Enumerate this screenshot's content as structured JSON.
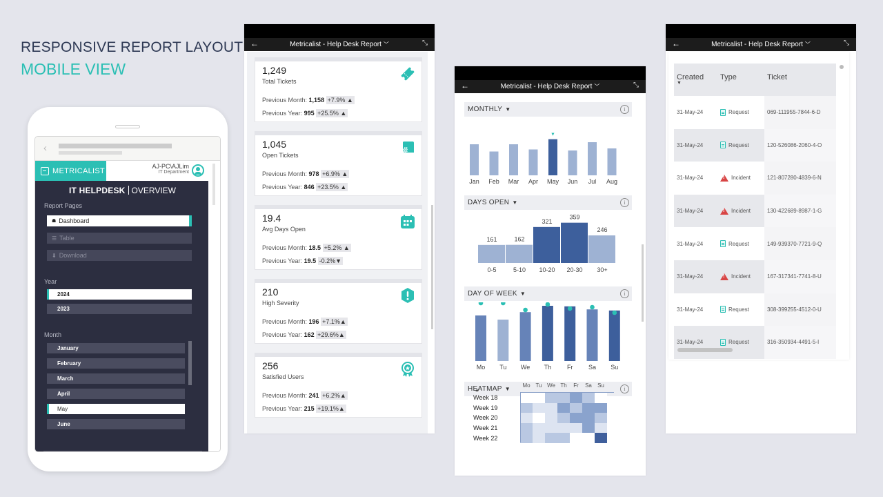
{
  "header": {
    "line1": "RESPONSIVE REPORT LAYOUT",
    "line2": "MOBILE VIEW"
  },
  "phone": {
    "logo": "METRICALIST",
    "user_name": "AJ-PC\\AJLim",
    "user_dept": "IT Department",
    "title_main": "IT HELPDESK",
    "title_sub": "OVERVIEW",
    "report_pages_label": "Report Pages",
    "pages": [
      {
        "label": "Dashboard",
        "icon": "home-icon"
      },
      {
        "label": "Table",
        "icon": "list-icon"
      },
      {
        "label": "Download",
        "icon": "download-icon"
      }
    ],
    "year_label": "Year",
    "years": [
      "2024",
      "2023"
    ],
    "selected_year": "2024",
    "month_label": "Month",
    "months": [
      "January",
      "February",
      "March",
      "April",
      "May",
      "June"
    ],
    "selected_month": "May"
  },
  "panel_title": "Metricalist - Help Desk Report",
  "kpis": [
    {
      "value": "1,249",
      "label": "Total Tickets",
      "prev_month_label": "Previous Month:",
      "prev_month": "1,158",
      "prev_month_change": "+7.9% ▲",
      "prev_year_label": "Previous Year:",
      "prev_year": "995",
      "prev_year_change": "+25.5% ▲",
      "icon": "ticket-icon"
    },
    {
      "value": "1,045",
      "label": "Open Tickets",
      "prev_month_label": "Previous Month:",
      "prev_month": "978",
      "prev_month_change": "+6.9% ▲",
      "prev_year_label": "Previous Year:",
      "prev_year": "846",
      "prev_year_change": "+23.5% ▲",
      "icon": "hashtag-chat-icon"
    },
    {
      "value": "19.4",
      "label": "Avg Days Open",
      "prev_month_label": "Previous Month:",
      "prev_month": "18.5",
      "prev_month_change": "+5.2% ▲",
      "prev_year_label": "Previous Year:",
      "prev_year": "19.5",
      "prev_year_change": "-0.2%▼",
      "icon": "calendar-icon"
    },
    {
      "value": "210",
      "label": "High Severity",
      "prev_month_label": "Previous Month:",
      "prev_month": "196",
      "prev_month_change": "+7.1%▲",
      "prev_year_label": "Previous Year:",
      "prev_year": "162",
      "prev_year_change": "+29.6%▲",
      "icon": "alert-icon"
    },
    {
      "value": "256",
      "label": "Satisfied Users",
      "prev_month_label": "Previous Month:",
      "prev_month": "241",
      "prev_month_change": "+6.2%▲",
      "prev_year_label": "Previous Year:",
      "prev_year": "215",
      "prev_year_change": "+19.1%▲",
      "icon": "award-icon"
    }
  ],
  "sections": {
    "monthly": "MONTHLY",
    "days_open": "DAYS OPEN",
    "day_of_week": "DAY OF WEEK",
    "heatmap": "HEATMAP"
  },
  "colors": {
    "accent": "#2bbfb4",
    "bar_light": "#9eb2d3",
    "bar_dark": "#3d5f9c",
    "bar_mid": "#6683b8",
    "dark_panel": "#2c2e40"
  },
  "chart_data": [
    {
      "type": "bar",
      "categories": [
        "Jan",
        "Feb",
        "Mar",
        "Apr",
        "May",
        "Jun",
        "Jul",
        "Aug"
      ],
      "values": [
        1200,
        1130,
        1200,
        1150,
        1249,
        1140,
        1220,
        1160
      ],
      "highlight": "May"
    },
    {
      "type": "bar",
      "categories": [
        "0-5",
        "5-10",
        "10-20",
        "20-30",
        "30+"
      ],
      "values": [
        161,
        162,
        321,
        359,
        246
      ]
    },
    {
      "type": "bar",
      "categories": [
        "Mo",
        "Tu",
        "We",
        "Th",
        "Fr",
        "Sa",
        "Su"
      ],
      "values": [
        165,
        150,
        177,
        200,
        198,
        187,
        183
      ],
      "markers": [
        210,
        210,
        185,
        205,
        190,
        195,
        175
      ]
    },
    {
      "type": "heatmap",
      "columns": [
        "Mo",
        "Tu",
        "We",
        "Th",
        "Fr",
        "Sa",
        "Su"
      ],
      "rows": [
        "Week 18",
        "Week 19",
        "Week 20",
        "Week 21",
        "Week 22"
      ],
      "values": [
        [
          0,
          0,
          2,
          2,
          3,
          2,
          0
        ],
        [
          2,
          1,
          1,
          3,
          2,
          3,
          3
        ],
        [
          1,
          0,
          1,
          2,
          3,
          3,
          2
        ],
        [
          2,
          1,
          1,
          1,
          1,
          3,
          1
        ],
        [
          2,
          1,
          2,
          2,
          0,
          0,
          4
        ]
      ]
    }
  ],
  "table": {
    "headers": [
      "Created",
      "Type",
      "Ticket"
    ],
    "rows": [
      {
        "created": "31-May-24",
        "type": "Request",
        "ticket": "069-111955-7844-6-D"
      },
      {
        "created": "31-May-24",
        "type": "Request",
        "ticket": "120-526086-2060-4-O"
      },
      {
        "created": "31-May-24",
        "type": "Incident",
        "ticket": "121-807280-4839-6-N"
      },
      {
        "created": "31-May-24",
        "type": "Incident",
        "ticket": "130-422689-8987-1-G"
      },
      {
        "created": "31-May-24",
        "type": "Request",
        "ticket": "149-939370-7721-9-Q"
      },
      {
        "created": "31-May-24",
        "type": "Incident",
        "ticket": "167-317341-7741-8-U"
      },
      {
        "created": "31-May-24",
        "type": "Request",
        "ticket": "308-399255-4512-0-U"
      },
      {
        "created": "31-May-24",
        "type": "Request",
        "ticket": "316-350934-4491-5-I"
      }
    ]
  }
}
